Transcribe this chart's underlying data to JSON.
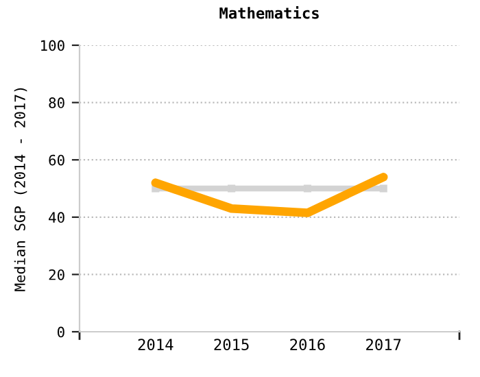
{
  "chart_data": {
    "type": "line",
    "title": "Mathematics",
    "ylabel": "Median SGP (2014 - 2017)",
    "categories": [
      "2014",
      "2015",
      "2016",
      "2017"
    ],
    "series": [
      {
        "color": "#d3d3d3",
        "values": [
          50,
          50,
          50,
          50
        ],
        "marker": "square"
      },
      {
        "color": "#ffa500",
        "values": [
          52,
          43,
          41.5,
          54
        ],
        "marker": "none"
      }
    ],
    "ylim": [
      0,
      100
    ],
    "yticks": [
      0,
      20,
      40,
      60,
      80,
      100
    ],
    "grid": "y",
    "legend": false
  }
}
